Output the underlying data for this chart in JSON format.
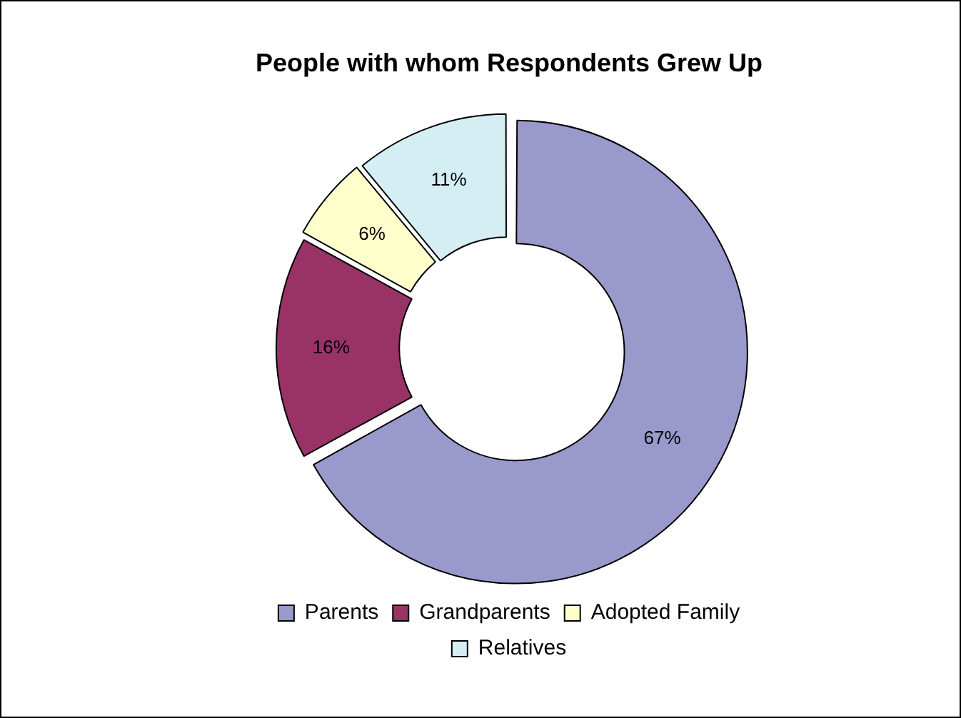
{
  "chart_data": {
    "type": "donut",
    "title": "People with whom Respondents Grew Up",
    "categories": [
      "Parents",
      "Grandparents",
      "Adopted Family",
      "Relatives"
    ],
    "values": [
      67,
      16,
      6,
      11
    ],
    "colors": [
      "#9999cc",
      "#993366",
      "#ffffcc",
      "#d4eef4"
    ],
    "value_labels": [
      "67%",
      "16%",
      "6%",
      "11%"
    ],
    "legend": "bottom"
  }
}
